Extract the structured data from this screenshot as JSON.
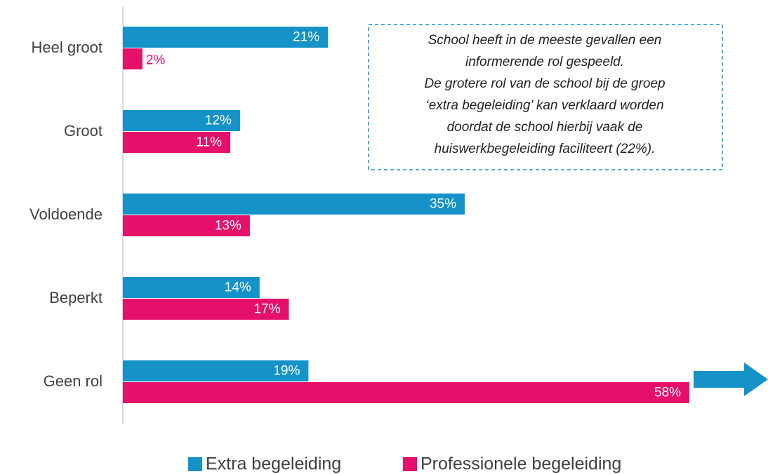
{
  "chart_data": {
    "type": "hbar",
    "categories": [
      "Heel groot",
      "Groot",
      "Voldoende",
      "Beperkt",
      "Geen rol"
    ],
    "series": [
      {
        "name": "Extra begeleiding",
        "color": "#1592c8",
        "values": [
          21,
          12,
          35,
          14,
          19
        ],
        "value_labels": [
          "21%",
          "12%",
          "35%",
          "14%",
          "19%"
        ]
      },
      {
        "name": "Professionele begeleiding",
        "color": "#e5106a",
        "values": [
          2,
          11,
          13,
          17,
          58
        ],
        "value_labels": [
          "2%",
          "11%",
          "13%",
          "17%",
          "58%"
        ]
      }
    ],
    "annotation": [
      "School heeft in de meeste gevallen een",
      "informerende rol gespeeld.",
      "De grotere rol van de school bij de groep",
      "‘extra begeleiding’ kan verklaard worden",
      "doordat de school hierbij vaak de",
      "huiswerkbegeleiding faciliteert (22%)."
    ],
    "legend": "bottom"
  }
}
